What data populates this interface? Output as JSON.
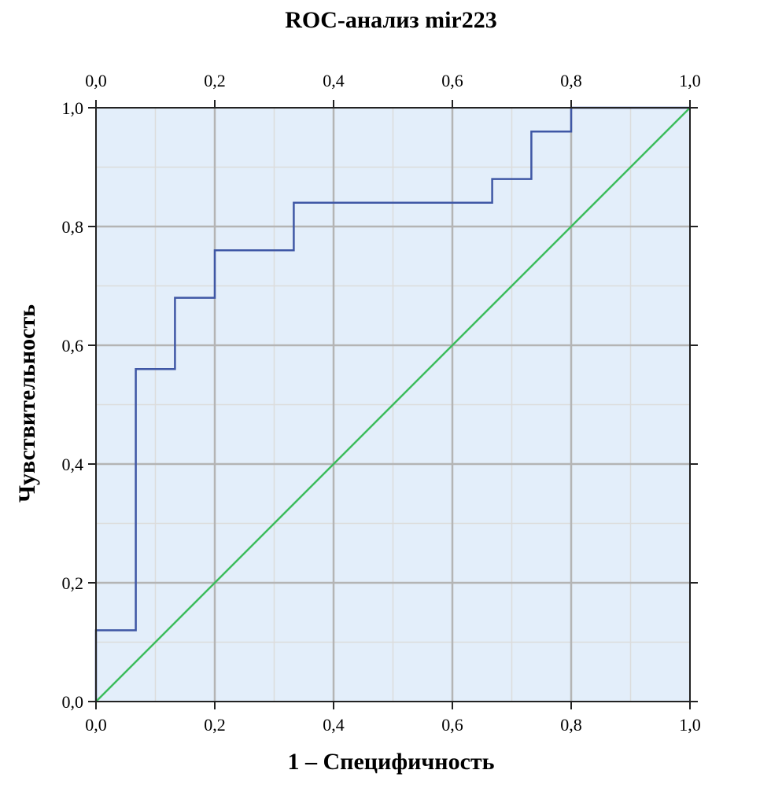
{
  "chart_data": {
    "type": "line",
    "title": "ROC-анализ mir223",
    "xlabel": "1 – Специфичность",
    "ylabel": "Чувствительность",
    "xlim": [
      0,
      1
    ],
    "ylim": [
      0,
      1
    ],
    "x_ticks": [
      "0,0",
      "0,2",
      "0,4",
      "0,6",
      "0,8",
      "1,0"
    ],
    "y_ticks": [
      "0,0",
      "0,2",
      "0,4",
      "0,6",
      "0,8",
      "1,0"
    ],
    "grid": true,
    "colors": {
      "background": "#e3eefa",
      "roc": "#3f57a5",
      "reference": "#3cbc5c",
      "major_grid": "#b4b4b4",
      "minor_grid": "#dcdcdc"
    },
    "series": [
      {
        "kind": "roc",
        "x": [
          0,
          0,
          0.067,
          0.067,
          0.133,
          0.133,
          0.2,
          0.2,
          0.333,
          0.333,
          0.667,
          0.667,
          0.733,
          0.733,
          0.8,
          0.8,
          1.0
        ],
        "y": [
          0,
          0.12,
          0.12,
          0.56,
          0.56,
          0.68,
          0.68,
          0.76,
          0.76,
          0.84,
          0.84,
          0.88,
          0.88,
          0.96,
          0.96,
          1.0,
          1.0
        ]
      },
      {
        "kind": "reference",
        "x": [
          0,
          1
        ],
        "y": [
          0,
          1
        ]
      }
    ]
  }
}
